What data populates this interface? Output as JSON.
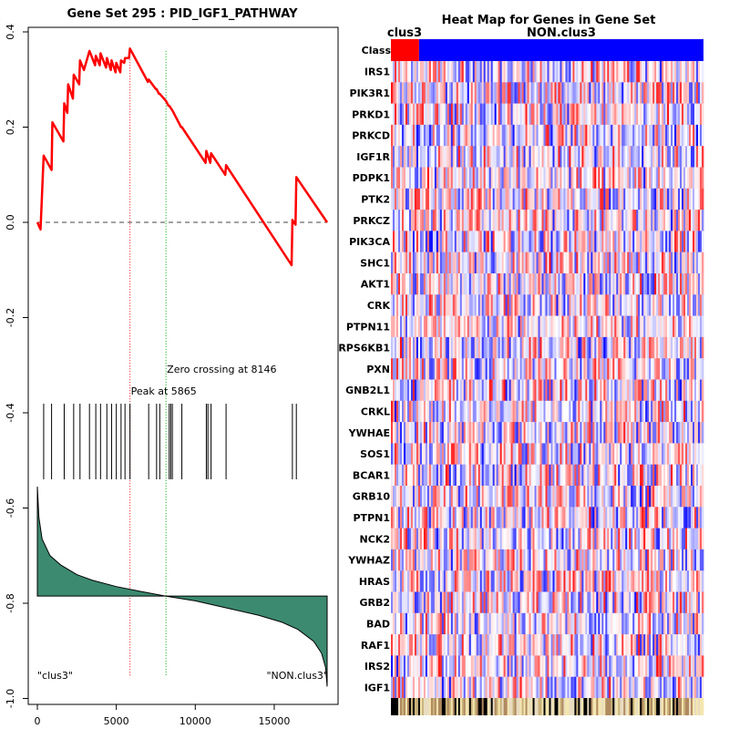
{
  "chart_data": [
    {
      "type": "line",
      "title": "Gene Set  295 : PID_IGF1_PATHWAY",
      "xlim": [
        0,
        18500
      ],
      "ylim": [
        -1.0,
        0.4
      ],
      "x_ticks": [
        0,
        5000,
        10000,
        15000
      ],
      "x_tick_labels": [
        "0",
        "5000",
        "10000",
        "15000"
      ],
      "y_ticks": [
        -1.0,
        -0.8,
        -0.6,
        -0.4,
        -0.2,
        0.0,
        0.2,
        0.4
      ],
      "y_tick_labels": [
        "-1.0",
        "-0.8",
        "-0.6",
        "-0.4",
        "-0.2",
        "0.0",
        "0.2",
        "0.4"
      ],
      "peak_x": 5865,
      "peak_label": "Peak at 5865",
      "zero_crossing_x": 8146,
      "zero_crossing_label": "Zero crossing at 8146",
      "left_phenotype_label": "\"clus3\"",
      "right_phenotype_label": "\"NON.clus3\"",
      "enrichment_line_color": "#ff0000",
      "hit_positions": [
        400,
        900,
        1700,
        2300,
        2700,
        3300,
        3700,
        4000,
        4400,
        4700,
        5000,
        5300,
        5550,
        5865,
        7050,
        7550,
        7750,
        8350,
        8450,
        8550,
        9150,
        10700,
        10800,
        11000,
        11950,
        16150,
        16400
      ],
      "running_es": [
        [
          0,
          0.0
        ],
        [
          200,
          -0.015
        ],
        [
          400,
          0.14
        ],
        [
          900,
          0.11
        ],
        [
          950,
          0.21
        ],
        [
          1650,
          0.17
        ],
        [
          1700,
          0.25
        ],
        [
          1900,
          0.23
        ],
        [
          1950,
          0.29
        ],
        [
          2250,
          0.26
        ],
        [
          2300,
          0.31
        ],
        [
          2650,
          0.29
        ],
        [
          2700,
          0.34
        ],
        [
          2950,
          0.32
        ],
        [
          3300,
          0.36
        ],
        [
          3650,
          0.33
        ],
        [
          3700,
          0.35
        ],
        [
          3950,
          0.33
        ],
        [
          4000,
          0.355
        ],
        [
          4350,
          0.325
        ],
        [
          4400,
          0.345
        ],
        [
          4650,
          0.32
        ],
        [
          4700,
          0.34
        ],
        [
          4950,
          0.315
        ],
        [
          5000,
          0.335
        ],
        [
          5250,
          0.315
        ],
        [
          5300,
          0.34
        ],
        [
          5500,
          0.335
        ],
        [
          5550,
          0.345
        ],
        [
          5800,
          0.345
        ],
        [
          5865,
          0.365
        ],
        [
          7000,
          0.295
        ],
        [
          7050,
          0.3
        ],
        [
          7500,
          0.28
        ],
        [
          7550,
          0.28
        ],
        [
          7700,
          0.27
        ],
        [
          7750,
          0.27
        ],
        [
          8146,
          0.255
        ],
        [
          8300,
          0.245
        ],
        [
          8350,
          0.245
        ],
        [
          8450,
          0.24
        ],
        [
          8550,
          0.235
        ],
        [
          9100,
          0.2
        ],
        [
          9150,
          0.2
        ],
        [
          10650,
          0.125
        ],
        [
          10700,
          0.15
        ],
        [
          10950,
          0.125
        ],
        [
          11000,
          0.145
        ],
        [
          11900,
          0.1
        ],
        [
          11950,
          0.12
        ],
        [
          16100,
          -0.09
        ],
        [
          16150,
          0.005
        ],
        [
          16350,
          -0.005
        ],
        [
          16400,
          0.095
        ],
        [
          18350,
          0.0
        ]
      ],
      "ranked_metric": {
        "baseline": -0.785,
        "points": [
          [
            0,
            -0.555
          ],
          [
            100,
            -0.62
          ],
          [
            300,
            -0.665
          ],
          [
            800,
            -0.7
          ],
          [
            1500,
            -0.72
          ],
          [
            2500,
            -0.74
          ],
          [
            3500,
            -0.752
          ],
          [
            5000,
            -0.765
          ],
          [
            6500,
            -0.775
          ],
          [
            8146,
            -0.785
          ],
          [
            10000,
            -0.795
          ],
          [
            12000,
            -0.81
          ],
          [
            14000,
            -0.825
          ],
          [
            15500,
            -0.84
          ],
          [
            16500,
            -0.855
          ],
          [
            17500,
            -0.88
          ],
          [
            18000,
            -0.905
          ],
          [
            18250,
            -0.935
          ],
          [
            18350,
            -0.975
          ]
        ],
        "fill_color": "#3c8a6f"
      }
    },
    {
      "type": "heatmap",
      "title": "Heat Map for Genes in Gene Set",
      "class_row_label": "Class",
      "class_labels": [
        "clus3",
        "NON.clus3"
      ],
      "class_colors": [
        "#ff0000",
        "#0000ff"
      ],
      "clus3_fraction": 0.09,
      "genes": [
        "IRS1",
        "PIK3R1",
        "PRKD1",
        "PRKCD",
        "IGF1R",
        "PDPK1",
        "PTK2",
        "PRKCZ",
        "PIK3CA",
        "SHC1",
        "AKT1",
        "CRK",
        "PTPN11",
        "RPS6KB1",
        "PXN",
        "GNB2L1",
        "CRKL",
        "YWHAE",
        "SOS1",
        "BCAR1",
        "GRB10",
        "PTPN1",
        "NCK2",
        "YWHAZ",
        "HRAS",
        "GRB2",
        "BAD",
        "RAF1",
        "IRS2",
        "IGF1"
      ],
      "high_color": "#ff0000",
      "low_color": "#0000ff"
    }
  ]
}
